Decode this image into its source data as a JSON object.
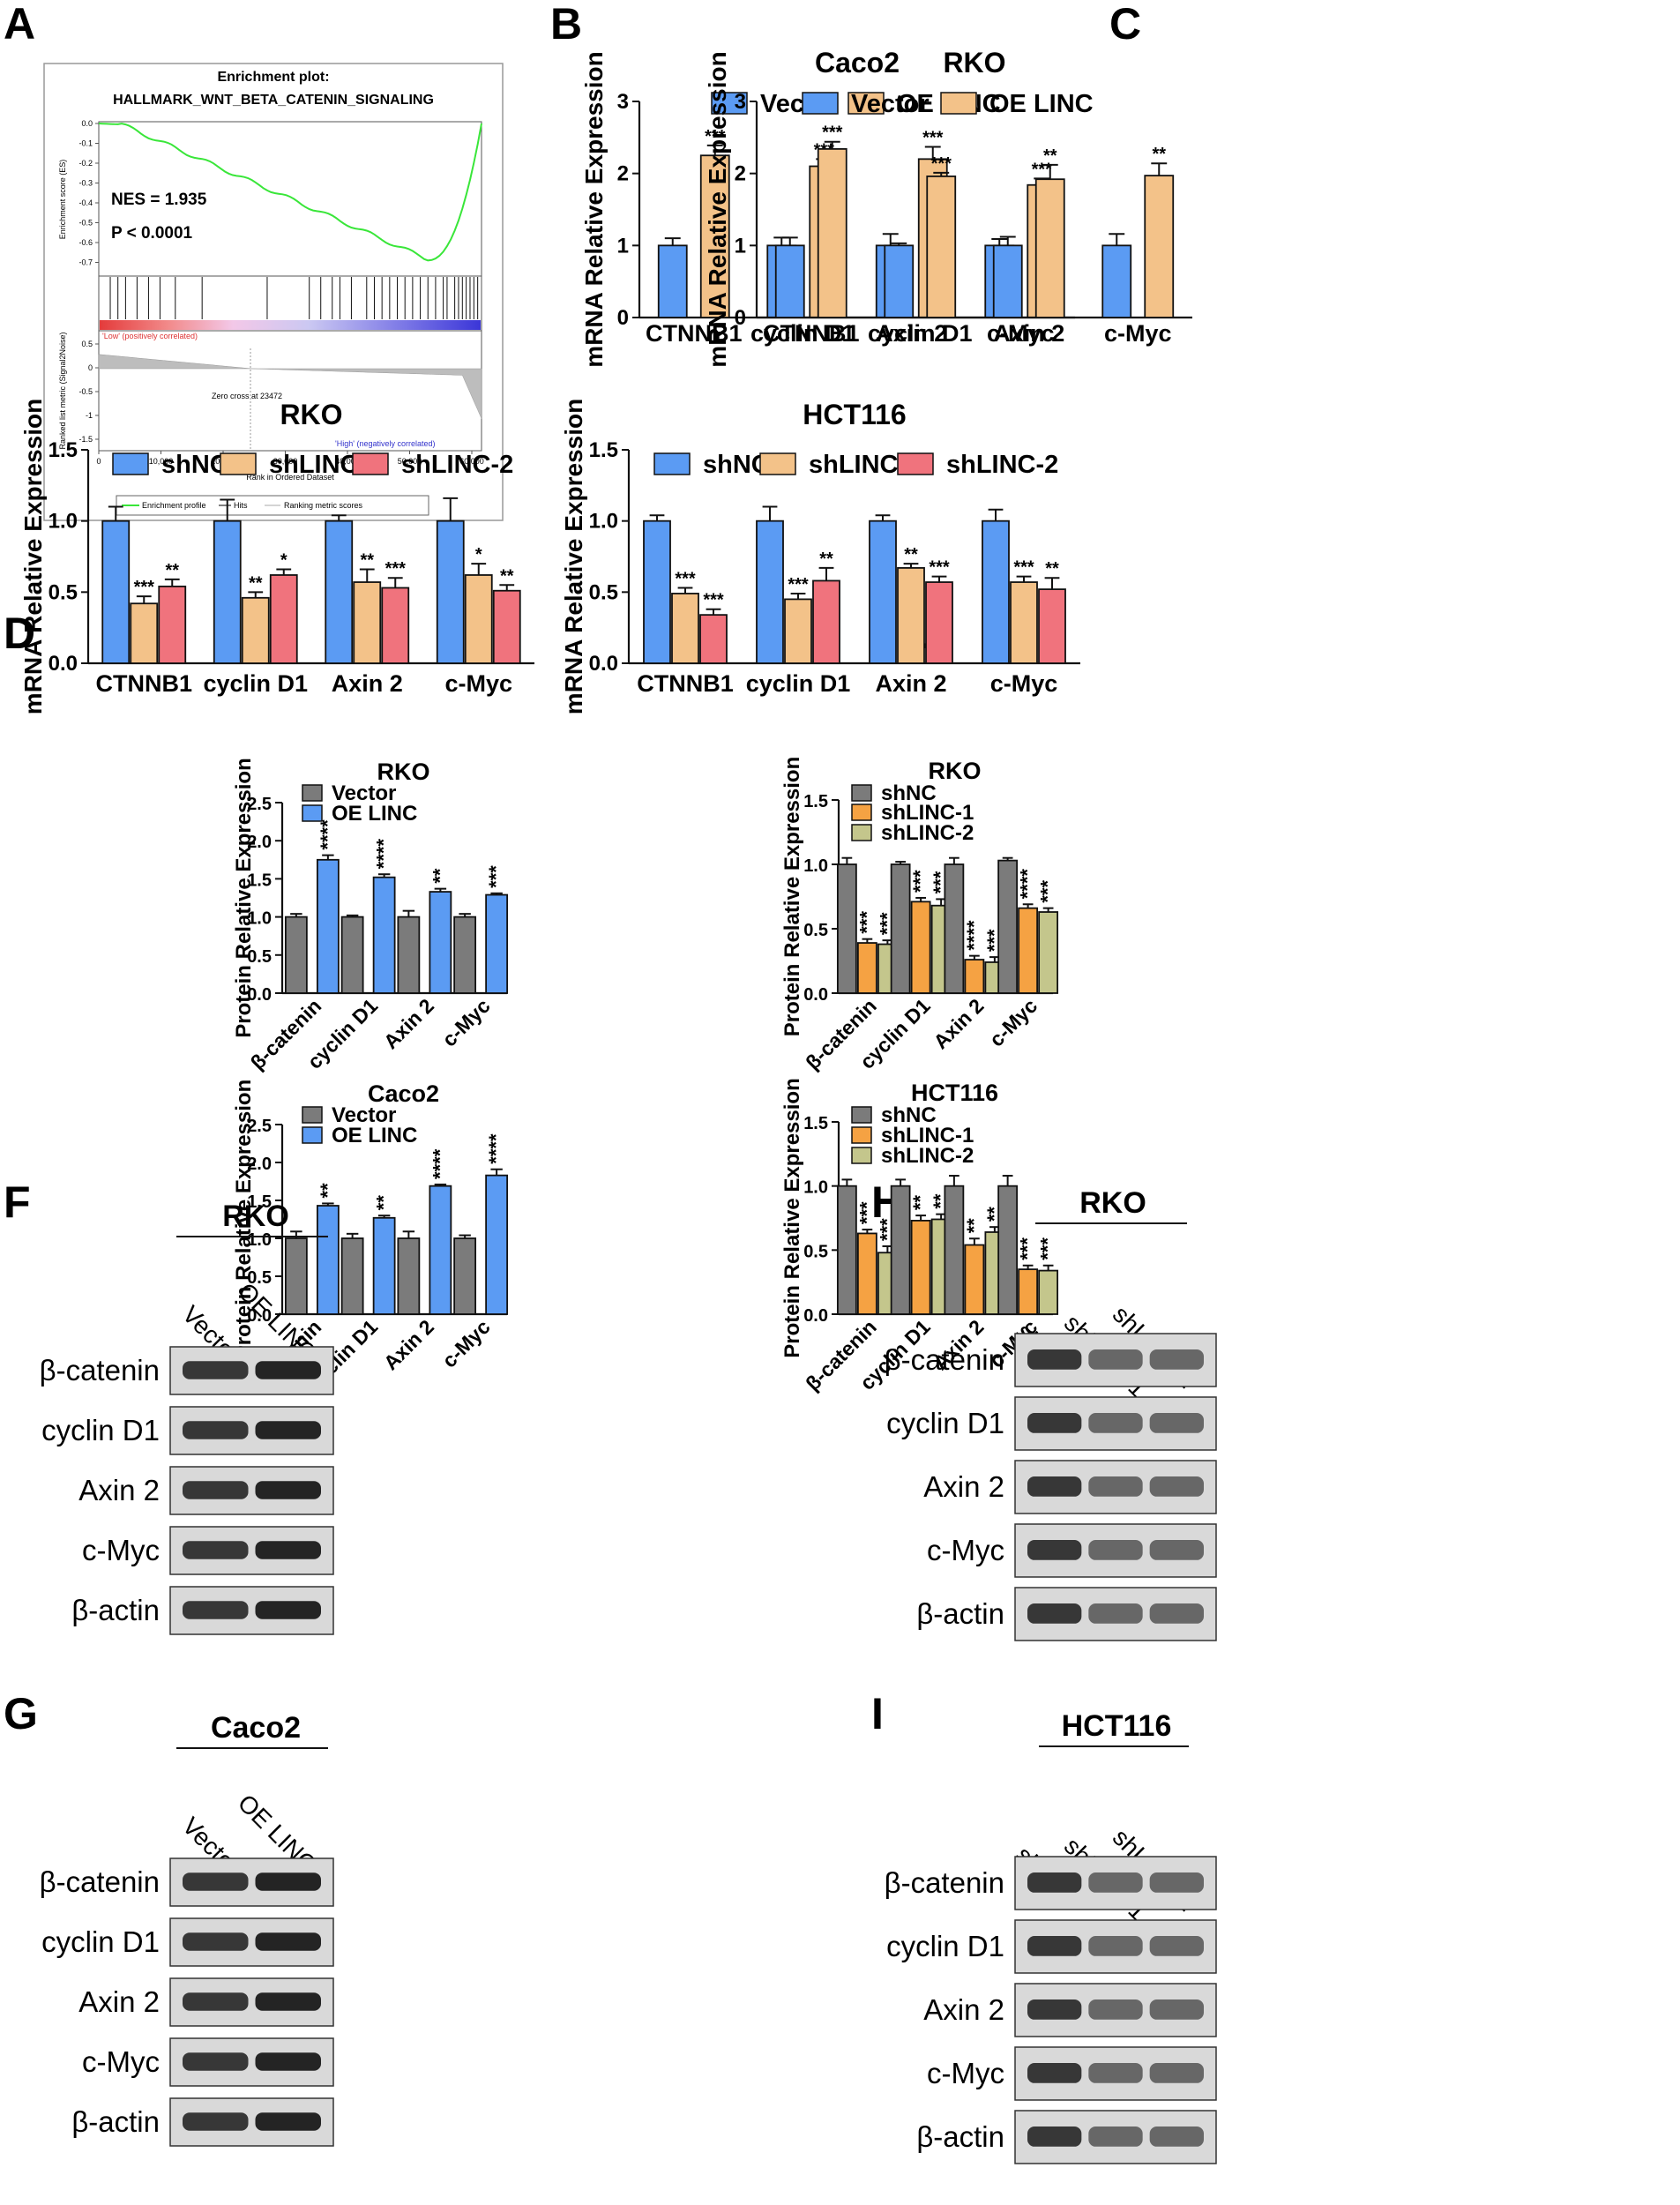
{
  "panel_labels": [
    "A",
    "B",
    "C",
    "D",
    "E",
    "F",
    "G",
    "H",
    "I"
  ],
  "colors": {
    "blue": "#5b9bf3",
    "orange": "#f3c289",
    "red": "#f0737d",
    "gray": "#7b7b7b",
    "orange2": "#f5a243",
    "olive": "#c4c68c",
    "green": "#39e639"
  },
  "gsea": {
    "title1": "Enrichment plot:",
    "title2": "HALLMARK_WNT_BETA_CATENIN_SIGNALING",
    "nes": "NES = 1.935",
    "p": "P < 0.0001",
    "es_label": "Enrichment score (ES)",
    "es_ticks": [
      "0.0",
      "-0.1",
      "-0.2",
      "-0.3",
      "-0.4",
      "-0.5",
      "-0.6",
      "-0.7"
    ],
    "rank_label": "Ranked list metric (Signal2Noise)",
    "rank_ticks": [
      "0.5",
      "0",
      "-0.5",
      "-1",
      "-1.5"
    ],
    "x_ticks": [
      "0",
      "10,000",
      "20,000",
      "30,000",
      "40,000",
      "50,000",
      "60,000"
    ],
    "x_label": "Rank in Ordered Dataset",
    "low_text": "'Low' (positively correlated)",
    "high_text": "'High' (negatively correlated)",
    "zero_cross": "Zero cross at 23472",
    "legend": [
      "Enrichment profile",
      "Hits",
      "Ranking metric scores"
    ]
  },
  "chart_data": [
    {
      "id": "B",
      "type": "bar",
      "title": "Caco2",
      "ylabel": "mRNA Relative Expression",
      "ylim": [
        0,
        3
      ],
      "yticks": [
        "0",
        "1",
        "2",
        "3"
      ],
      "categories": [
        "CTNNB1",
        "cyclin D1",
        "Axin 2",
        "c-Myc"
      ],
      "series": [
        {
          "name": "Vector",
          "color": "blue",
          "values": [
            1.0,
            1.0,
            1.0,
            1.0
          ],
          "errors": [
            0.1,
            0.11,
            0.16,
            0.09
          ]
        },
        {
          "name": "OE LINC",
          "color": "orange",
          "values": [
            2.25,
            2.1,
            2.2,
            1.84
          ],
          "errors": [
            0.14,
            0.1,
            0.17,
            0.09
          ],
          "sig": [
            "***",
            "***",
            "***",
            "***"
          ]
        }
      ]
    },
    {
      "id": "C",
      "type": "bar",
      "title": "RKO",
      "ylabel": "mRNA Relative Expression",
      "ylim": [
        0,
        3
      ],
      "yticks": [
        "0",
        "1",
        "2",
        "3"
      ],
      "categories": [
        "CTNNB1",
        "cyclin D1",
        "Axin 2",
        "c-Myc"
      ],
      "series": [
        {
          "name": "Vector",
          "color": "blue",
          "values": [
            1.0,
            1.0,
            1.0,
            1.0
          ],
          "errors": [
            0.11,
            0.03,
            0.12,
            0.16
          ]
        },
        {
          "name": "OE LINC",
          "color": "orange",
          "values": [
            2.34,
            1.96,
            1.92,
            1.97
          ],
          "errors": [
            0.1,
            0.05,
            0.2,
            0.17
          ],
          "sig": [
            "***",
            "***",
            "**",
            "**"
          ]
        }
      ]
    },
    {
      "id": "D",
      "type": "bar",
      "title": "RKO",
      "ylabel": "mRNA Relative Expression",
      "ylim": [
        0,
        1.5
      ],
      "yticks": [
        "0.0",
        "0.5",
        "1.0",
        "1.5"
      ],
      "categories": [
        "CTNNB1",
        "cyclin D1",
        "Axin 2",
        "c-Myc"
      ],
      "series": [
        {
          "name": "shNC",
          "color": "blue",
          "values": [
            1.0,
            1.0,
            1.0,
            1.0
          ],
          "errors": [
            0.1,
            0.15,
            0.04,
            0.16
          ]
        },
        {
          "name": "shLINC-1",
          "color": "orange",
          "values": [
            0.42,
            0.46,
            0.57,
            0.62
          ],
          "errors": [
            0.05,
            0.04,
            0.09,
            0.08
          ],
          "sig": [
            "***",
            "**",
            "**",
            "*"
          ]
        },
        {
          "name": "shLINC-2",
          "color": "red",
          "values": [
            0.54,
            0.62,
            0.53,
            0.51
          ],
          "errors": [
            0.05,
            0.04,
            0.07,
            0.04
          ],
          "sig": [
            "**",
            "*",
            "***",
            "**"
          ]
        }
      ]
    },
    {
      "id": "E",
      "type": "bar",
      "title": "HCT116",
      "ylabel": "mRNA Relative Expression",
      "ylim": [
        0,
        1.5
      ],
      "yticks": [
        "0.0",
        "0.5",
        "1.0",
        "1.5"
      ],
      "categories": [
        "CTNNB1",
        "cyclin D1",
        "Axin 2",
        "c-Myc"
      ],
      "series": [
        {
          "name": "shNC",
          "color": "blue",
          "values": [
            1.0,
            1.0,
            1.0,
            1.0
          ],
          "errors": [
            0.04,
            0.1,
            0.04,
            0.08
          ]
        },
        {
          "name": "shLINC-1",
          "color": "orange",
          "values": [
            0.49,
            0.45,
            0.67,
            0.57
          ],
          "errors": [
            0.04,
            0.04,
            0.03,
            0.04
          ],
          "sig": [
            "***",
            "***",
            "**",
            "***"
          ]
        },
        {
          "name": "shLINC-2",
          "color": "red",
          "values": [
            0.34,
            0.58,
            0.57,
            0.52
          ],
          "errors": [
            0.04,
            0.09,
            0.04,
            0.08
          ],
          "sig": [
            "***",
            "**",
            "***",
            "**"
          ]
        }
      ]
    },
    {
      "id": "F",
      "type": "bar",
      "title": "RKO",
      "ylabel": "Protein Relative Expression",
      "ylim": [
        0,
        2.5
      ],
      "yticks": [
        "0.0",
        "0.5",
        "1.0",
        "1.5",
        "2.0",
        "2.5"
      ],
      "rotated": true,
      "categories": [
        "β-catenin",
        "cyclin D1",
        "Axin 2",
        "c-Myc"
      ],
      "series": [
        {
          "name": "Vector",
          "color": "gray",
          "values": [
            1.0,
            1.0,
            1.0,
            1.0
          ],
          "errors": [
            0.04,
            0.02,
            0.08,
            0.04
          ]
        },
        {
          "name": "OE LINC",
          "color": "blue",
          "values": [
            1.75,
            1.52,
            1.33,
            1.29
          ],
          "errors": [
            0.06,
            0.04,
            0.04,
            0.02
          ],
          "sig": [
            "****",
            "****",
            "**",
            "***"
          ]
        }
      ]
    },
    {
      "id": "G",
      "type": "bar",
      "title": "Caco2",
      "ylabel": "Protein Relative Expression",
      "ylim": [
        0,
        2.5
      ],
      "yticks": [
        "0.0",
        "0.5",
        "1.0",
        "1.5",
        "2.0",
        "2.5"
      ],
      "rotated": true,
      "categories": [
        "β-catenin",
        "cyclin D1",
        "Axin 2",
        "c-Myc"
      ],
      "series": [
        {
          "name": "Vector",
          "color": "gray",
          "values": [
            1.0,
            1.0,
            1.0,
            1.0
          ],
          "errors": [
            0.09,
            0.06,
            0.09,
            0.04
          ]
        },
        {
          "name": "OE LINC",
          "color": "blue",
          "values": [
            1.43,
            1.27,
            1.69,
            1.83
          ],
          "errors": [
            0.03,
            0.03,
            0.02,
            0.08
          ],
          "sig": [
            "**",
            "**",
            "****",
            "****"
          ]
        }
      ]
    },
    {
      "id": "H",
      "type": "bar",
      "title": "RKO",
      "ylabel": "Protein Relative Expression",
      "ylim": [
        0,
        1.5
      ],
      "yticks": [
        "0.0",
        "0.5",
        "1.0",
        "1.5"
      ],
      "rotated": true,
      "categories": [
        "β-catenin",
        "cyclin D1",
        "Axin 2",
        "c-Myc"
      ],
      "series": [
        {
          "name": "shNC",
          "color": "gray",
          "values": [
            1.0,
            1.0,
            1.0,
            1.03
          ],
          "errors": [
            0.05,
            0.02,
            0.05,
            0.02
          ]
        },
        {
          "name": "shLINC-1",
          "color": "orange2",
          "values": [
            0.39,
            0.71,
            0.26,
            0.66
          ],
          "errors": [
            0.03,
            0.03,
            0.03,
            0.03
          ],
          "sig": [
            "***",
            "***",
            "****",
            "****"
          ]
        },
        {
          "name": "shLINC-2",
          "color": "olive",
          "values": [
            0.38,
            0.68,
            0.24,
            0.63
          ],
          "errors": [
            0.03,
            0.05,
            0.04,
            0.03
          ],
          "sig": [
            "***",
            "***",
            "***",
            "***"
          ]
        }
      ]
    },
    {
      "id": "I",
      "type": "bar",
      "title": "HCT116",
      "ylabel": "Protein Relative Expression",
      "ylim": [
        0,
        1.5
      ],
      "yticks": [
        "0.0",
        "0.5",
        "1.0",
        "1.5"
      ],
      "rotated": true,
      "categories": [
        "β-catenin",
        "cyclin D1",
        "Axin 2",
        "c-Myc"
      ],
      "series": [
        {
          "name": "shNC",
          "color": "gray",
          "values": [
            1.0,
            1.0,
            1.0,
            1.0
          ],
          "errors": [
            0.05,
            0.05,
            0.08,
            0.08
          ]
        },
        {
          "name": "shLINC-1",
          "color": "orange2",
          "values": [
            0.63,
            0.73,
            0.54,
            0.35
          ],
          "errors": [
            0.03,
            0.04,
            0.05,
            0.03
          ],
          "sig": [
            "***",
            "**",
            "**",
            "***"
          ]
        },
        {
          "name": "shLINC-2",
          "color": "olive",
          "values": [
            0.48,
            0.74,
            0.64,
            0.34
          ],
          "errors": [
            0.05,
            0.04,
            0.04,
            0.04
          ],
          "sig": [
            "***",
            "**",
            "**",
            "***"
          ]
        }
      ]
    }
  ],
  "blots": [
    {
      "id": "F",
      "cell": "RKO",
      "lanes": [
        "Vector",
        "OE LINC"
      ],
      "rows": [
        "β-catenin",
        "cyclin D1",
        "Axin 2",
        "c-Myc",
        "β-actin"
      ]
    },
    {
      "id": "G",
      "cell": "Caco2",
      "lanes": [
        "Vector",
        "OE LINC"
      ],
      "rows": [
        "β-catenin",
        "cyclin D1",
        "Axin 2",
        "c-Myc",
        "β-actin"
      ]
    },
    {
      "id": "H",
      "cell": "RKO",
      "lanes": [
        "shNC",
        "shLINC-1",
        "shLINC-2"
      ],
      "rows": [
        "β-catenin",
        "cyclin D1",
        "Axin 2",
        "c-Myc",
        "β-actin"
      ]
    },
    {
      "id": "I",
      "cell": "HCT116",
      "lanes": [
        "shNC",
        "shLINC-1",
        "shLINC-2"
      ],
      "rows": [
        "β-catenin",
        "cyclin D1",
        "Axin 2",
        "c-Myc",
        "β-actin"
      ]
    }
  ]
}
